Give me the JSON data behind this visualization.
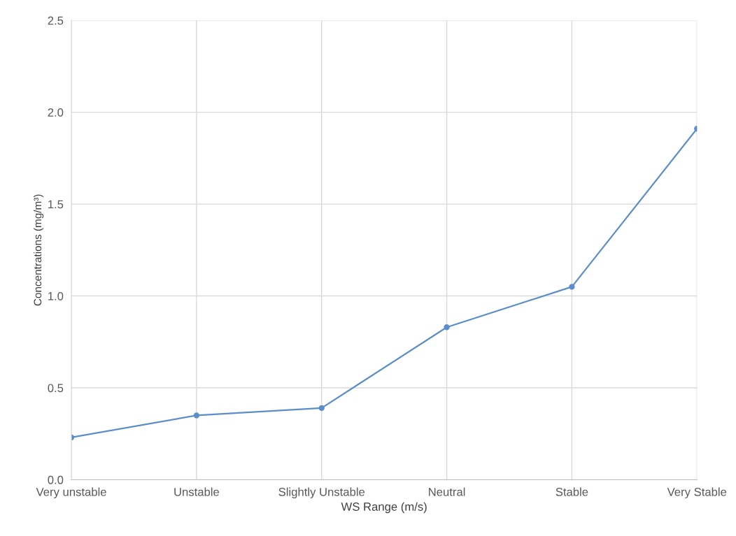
{
  "chart_data": {
    "type": "line",
    "xlabel": "WS Range (m/s)",
    "ylabel": "Concentrations (mg/m³)",
    "categories": [
      "Very unstable",
      "Unstable",
      "Slightly Unstable",
      "Neutral",
      "Stable",
      "Very Stable"
    ],
    "series": [
      {
        "color": "#5b8ec8",
        "values": [
          0.23,
          0.35,
          0.39,
          0.83,
          1.05,
          1.91
        ]
      }
    ],
    "ylim": [
      0,
      2.5
    ],
    "yticks": [
      {
        "value": 0,
        "label": "0.0"
      },
      {
        "value": 0.5,
        "label": "0.5"
      },
      {
        "value": 1,
        "label": "1.0"
      },
      {
        "value": 1.5,
        "label": "1.5"
      },
      {
        "value": 2,
        "label": "2.0"
      },
      {
        "value": 2.5,
        "label": "2.5"
      }
    ],
    "grid": true,
    "marker": "circle",
    "line_style": "solid"
  }
}
